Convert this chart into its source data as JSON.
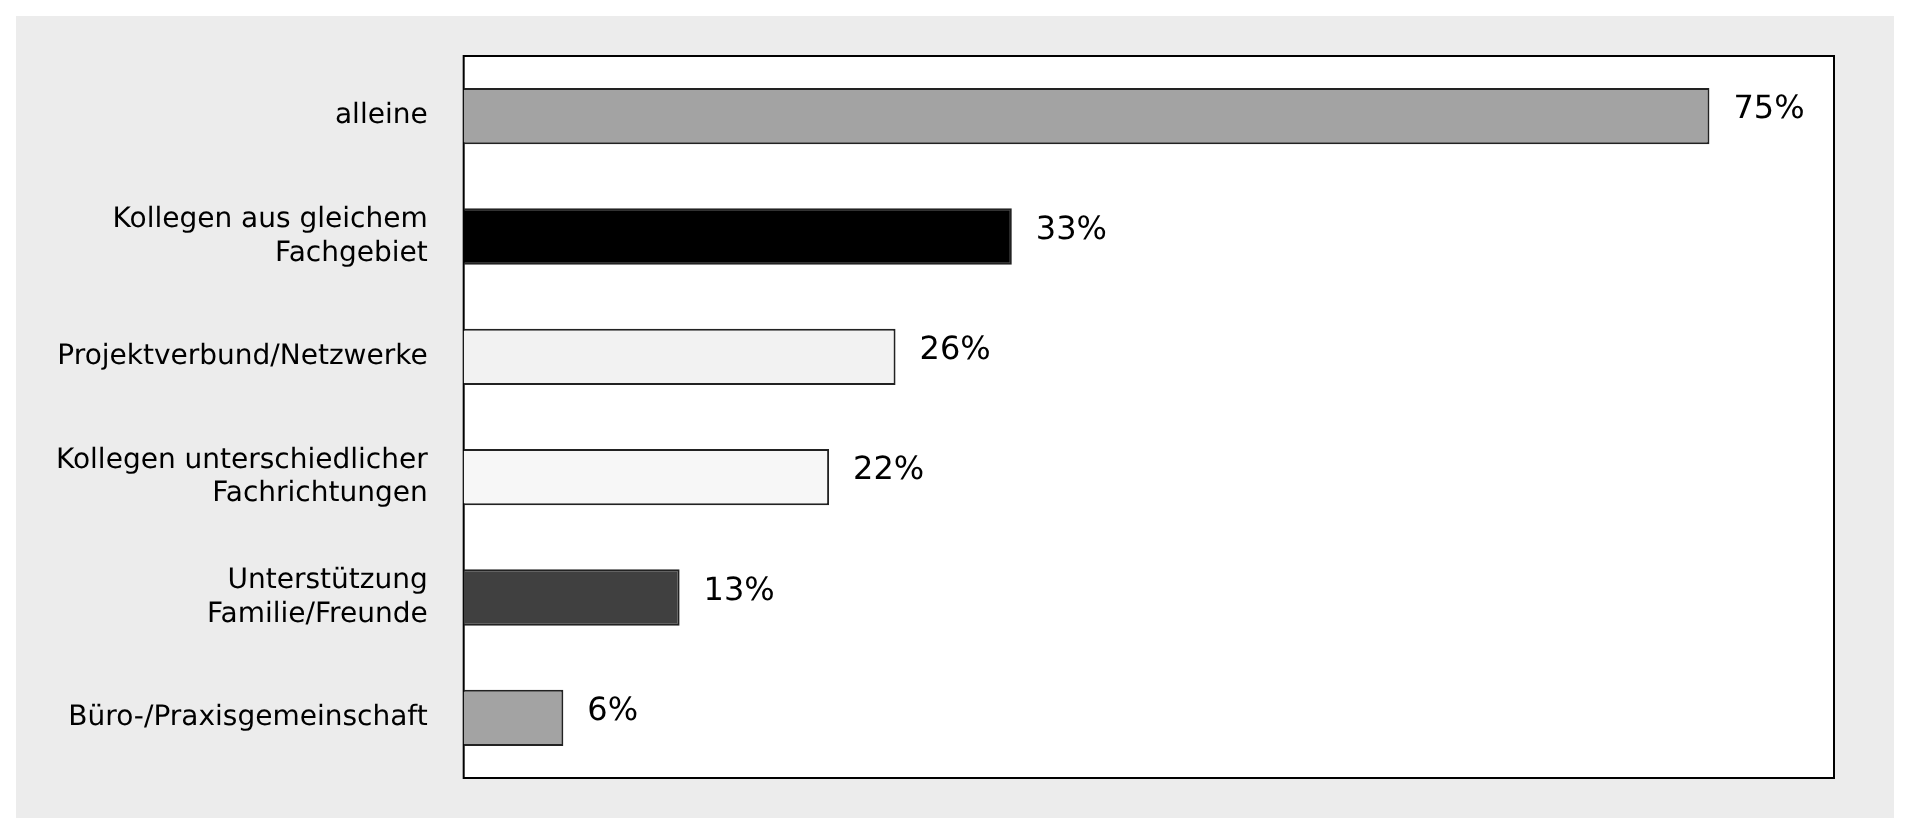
{
  "chart_data": {
    "type": "bar",
    "orientation": "horizontal",
    "tick_labels": "y",
    "categories": [
      "alleine",
      "Kollegen aus gleichem Fachgebiet",
      "Projektverbund/Netzwerke",
      "Kollegen unterschiedlicher Fachrichtungen",
      "Unterstützung Familie/Freunde",
      "Büro-/Praxisgemeinschaft"
    ],
    "values": [
      75,
      33,
      26,
      22,
      13,
      6
    ],
    "value_labels": [
      "75%",
      "33%",
      "26%",
      "22%",
      "13%",
      "6%"
    ],
    "colors": [
      "#a3a3a3",
      "#000000",
      "#f2f2f2",
      "#f7f7f7",
      "#404040",
      "#a3a3a3"
    ]
  }
}
